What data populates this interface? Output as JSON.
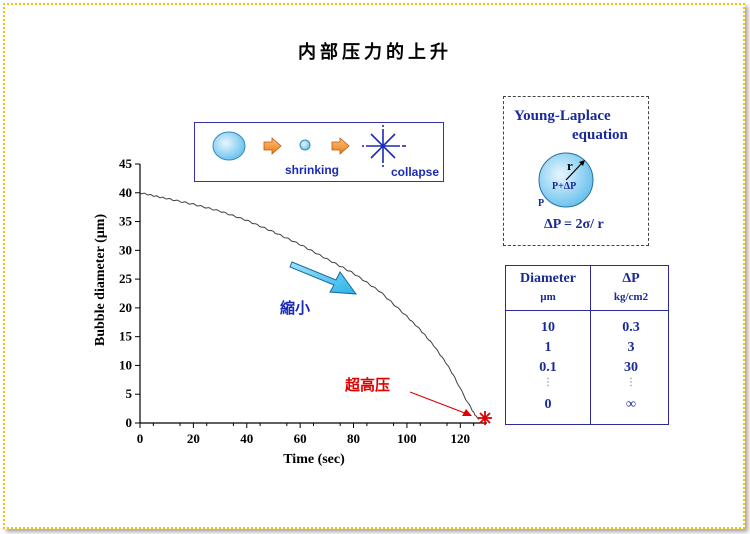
{
  "title": "内部压力的上升",
  "chart_data": {
    "type": "line",
    "xlabel": "Time (sec)",
    "ylabel": "Bubble diameter (µm)",
    "xlim": [
      0,
      130
    ],
    "ylim": [
      0,
      45
    ],
    "xticks": [
      0,
      20,
      40,
      60,
      80,
      100,
      120
    ],
    "yticks": [
      0,
      5,
      10,
      15,
      20,
      25,
      30,
      35,
      40,
      45
    ],
    "series": [
      {
        "name": "Bubble diameter",
        "x": [
          0,
          5,
          10,
          20,
          30,
          40,
          50,
          60,
          70,
          80,
          90,
          100,
          105,
          110,
          115,
          118,
          120,
          122,
          124,
          125,
          126,
          127
        ],
        "y": [
          40,
          39.5,
          39,
          38,
          36.8,
          35.2,
          33.2,
          31,
          28.5,
          26,
          22.8,
          18.5,
          16.2,
          13.5,
          10.2,
          7.8,
          6,
          4.2,
          2.6,
          1.8,
          1.1,
          0.6
        ]
      }
    ],
    "annotations": [
      {
        "text": "縮小",
        "color": "#1a2ab8"
      },
      {
        "text": "超高压",
        "color": "#e00000"
      }
    ]
  },
  "legend": {
    "shrinking_label": "shrinking",
    "collapse_label": "collapse"
  },
  "young_laplace": {
    "title_line1": "Young-Laplace",
    "title_line2": "equation",
    "radius_label": "r",
    "inner_label": "P+ΔP",
    "outer_label": "P",
    "equation": "ΔP =  2σ/ r"
  },
  "table": {
    "col1_header": "Diameter",
    "col1_unit": "µm",
    "col2_header": "ΔP",
    "col2_unit": "kg/cm2",
    "rows": [
      {
        "diameter": "10",
        "pressure": "0.3"
      },
      {
        "diameter": "1",
        "pressure": "3"
      },
      {
        "diameter": "0.1",
        "pressure": "30"
      },
      {
        "diameter": "0",
        "pressure": "∞"
      }
    ]
  }
}
